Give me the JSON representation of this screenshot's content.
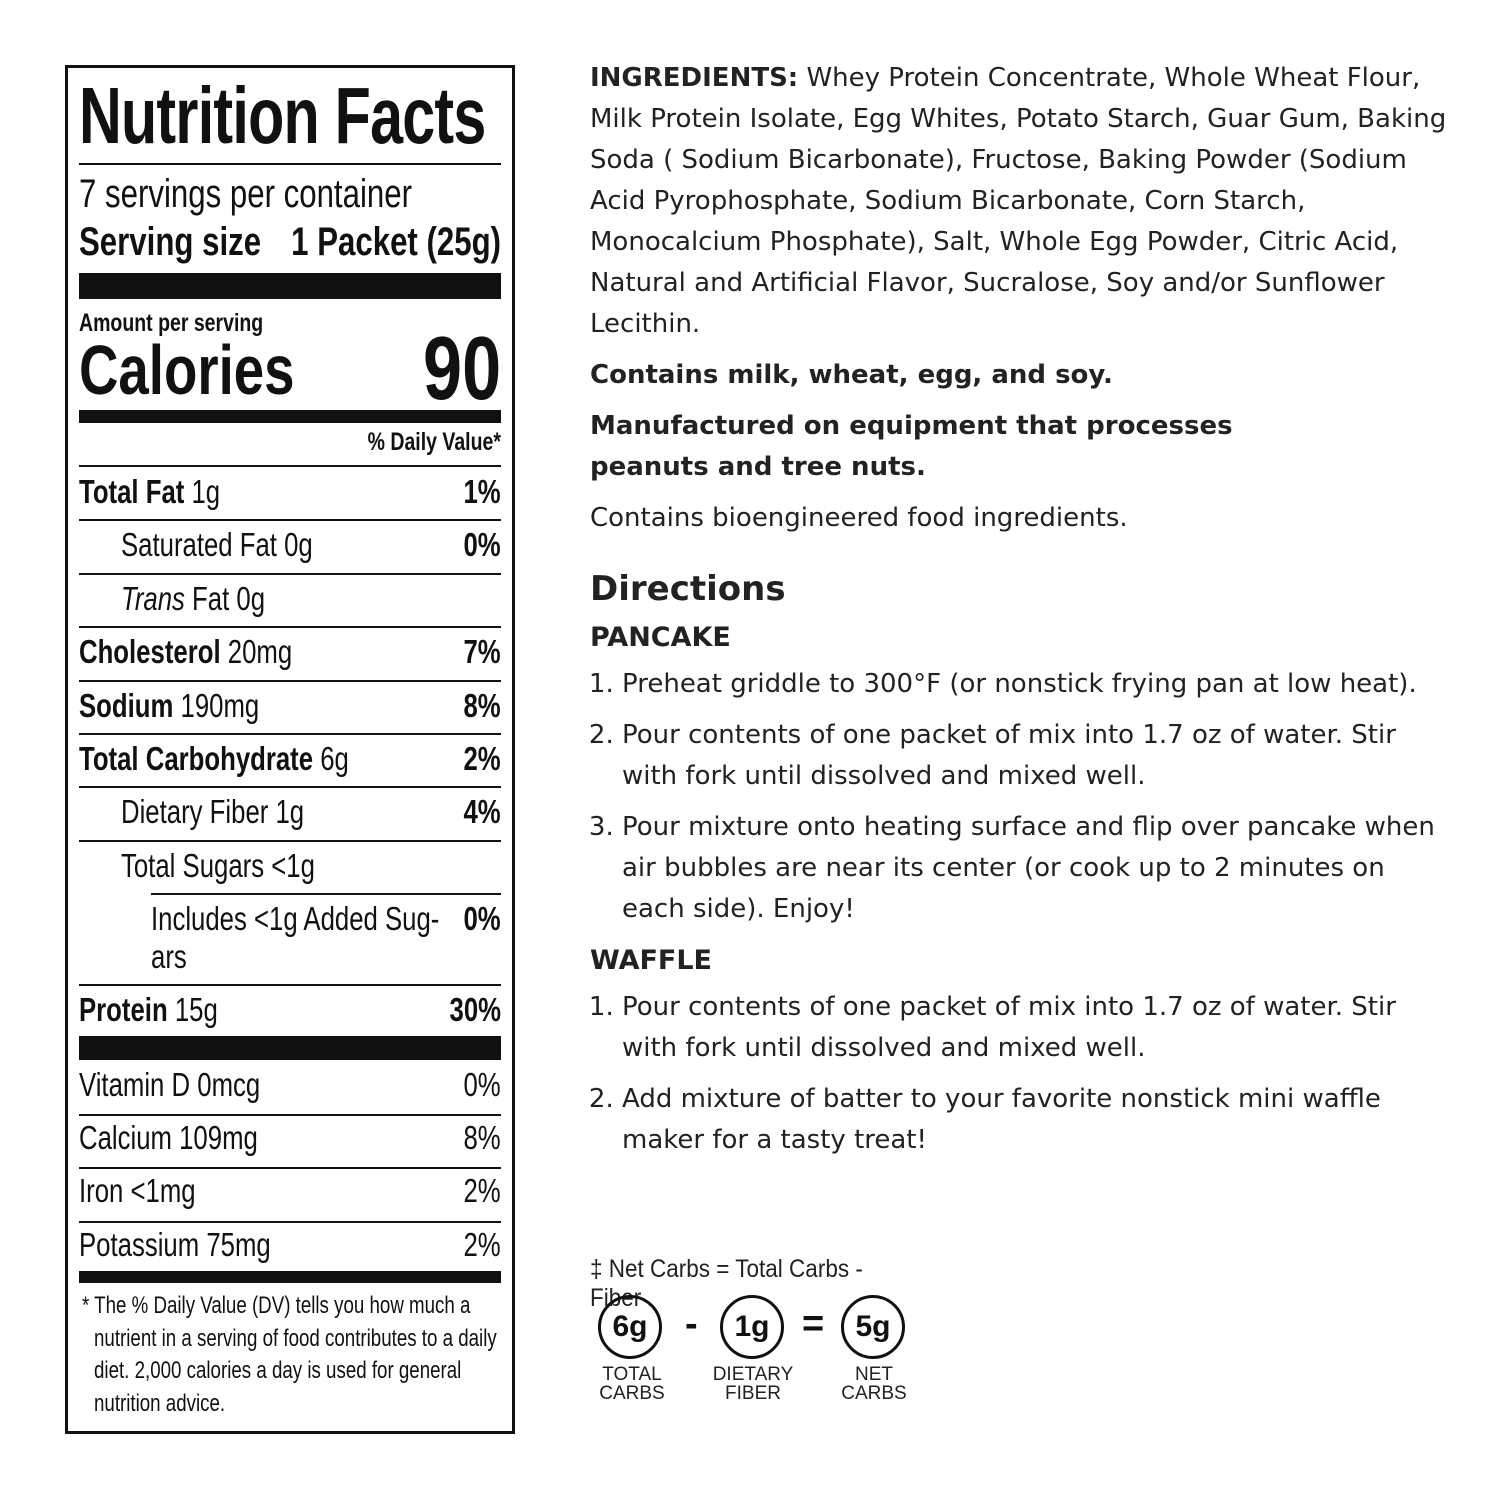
{
  "label": {
    "title": "Nutrition Facts",
    "servings": "7 servings per container",
    "serving_size_label": "Serving size",
    "serving_size_value": "1 Packet (25g)",
    "amount_per_serving": "Amount per serving",
    "calories_label": "Calories",
    "calories_value": "90",
    "daily_value_header": "% Daily Value*",
    "nutrients": [
      {
        "name": "Total Fat",
        "amount": "1g",
        "dv": "1%",
        "bold": true,
        "indent": 0
      },
      {
        "name": "Saturated Fat",
        "amount": "0g",
        "dv": "0%",
        "bold": false,
        "indent": 1
      },
      {
        "name": "Trans",
        "amount": "Fat 0g",
        "dv": "",
        "bold": false,
        "indent": 1,
        "italic": true
      },
      {
        "name": "Cholesterol",
        "amount": "20mg",
        "dv": "7%",
        "bold": true,
        "indent": 0
      },
      {
        "name": "Sodium",
        "amount": "190mg",
        "dv": "8%",
        "bold": true,
        "indent": 0
      },
      {
        "name": "Total Carbohydrate",
        "amount": "6g",
        "dv": "2%",
        "bold": true,
        "indent": 0
      },
      {
        "name": "Dietary Fiber",
        "amount": "1g",
        "dv": "4%",
        "bold": false,
        "indent": 1
      },
      {
        "name": "Total Sugars",
        "amount": "<1g",
        "dv": "",
        "bold": false,
        "indent": 1
      },
      {
        "name": "Includes <1g Added Sug-",
        "amount": "ars",
        "dv": "0%",
        "bold": false,
        "indent": 2,
        "twoline": true
      },
      {
        "name": "Protein",
        "amount": "15g",
        "dv": "30%",
        "bold": true,
        "indent": 0
      }
    ],
    "vitamins": [
      {
        "name": "Vitamin D 0mcg",
        "dv": "0%"
      },
      {
        "name": "Calcium 109mg",
        "dv": "8%"
      },
      {
        "name": "Iron <1mg",
        "dv": "2%"
      },
      {
        "name": "Potassium 75mg",
        "dv": "2%"
      }
    ],
    "footnote": [
      "* The % Daily Value (DV) tells you how much a",
      "nutrient in a serving of food contributes to a daily",
      "diet. 2,000 calories a day is used for general",
      "nutrition advice."
    ]
  },
  "ingredients": {
    "label": "INGREDIENTS:",
    "text": " Whey Protein Concentrate, Whole Wheat Flour, Milk Protein Isolate, Egg Whites, Potato Starch, Guar Gum, Baking Soda ( Sodium Bicarbonate), Fructose, Baking Powder (Sodium Acid Pyrophosphate, Sodium Bicarbonate, Corn Starch, Monocalcium Phosphate), Salt, Whole Egg Powder, Citric Acid, Natural and Artificial Flavor, Sucralose, Soy and/or Sunflower Lecithin."
  },
  "allergens": "Contains milk, wheat, egg, and soy.",
  "manufactured": "Manufactured on equipment that processes peanuts and tree nuts.",
  "bioengineered": "Contains bioengineered food ingredients.",
  "directions": {
    "title": "Directions",
    "pancake_title": "PANCAKE",
    "pancake_steps": [
      "Preheat griddle to 300°F (or nonstick frying pan at low heat).",
      "Pour contents of one packet of mix into 1.7 oz of water. Stir with fork until dissolved and mixed well.",
      "Pour mixture onto heating surface and flip over pancake when air bubbles are near its center (or cook up to 2 minutes on each side). Enjoy!"
    ],
    "waffle_title": "WAFFLE",
    "waffle_steps": [
      "Pour contents of one packet of mix into 1.7 oz of water. Stir with fork until dissolved and mixed well.",
      "Add mixture of batter to your favorite nonstick mini waffle maker for a tasty treat!"
    ]
  },
  "net_carbs": {
    "formula": "‡ Net Carbs = Total Carbs - Fiber",
    "total": "6g",
    "total_label_1": "TOTAL",
    "total_label_2": "CARBS",
    "minus": "-",
    "fiber": "1g",
    "fiber_label_1": "DIETARY",
    "fiber_label_2": "FIBER",
    "equals": "=",
    "net": "5g",
    "net_label_1": "NET",
    "net_label_2": "CARBS"
  }
}
